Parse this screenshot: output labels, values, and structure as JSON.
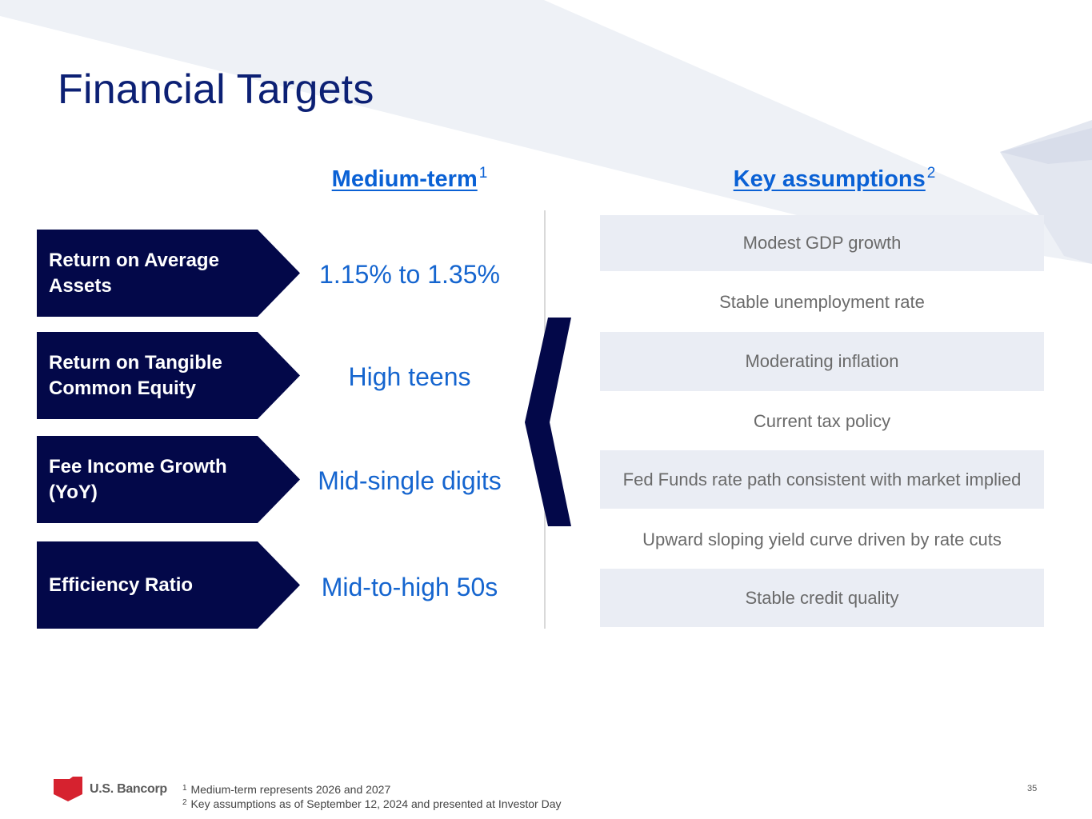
{
  "title": "Financial Targets",
  "headers": {
    "medium_term": "Medium-term",
    "medium_term_note": "1",
    "key_assumptions": "Key assumptions",
    "key_assumptions_note": "2"
  },
  "metrics": [
    {
      "label": "Return on Average Assets",
      "target": "1.15% to 1.35%"
    },
    {
      "label": "Return on Tangible Common Equity",
      "target": "High teens"
    },
    {
      "label": "Fee Income Growth (YoY)",
      "target": "Mid-single digits"
    },
    {
      "label": "Efficiency Ratio",
      "target": "Mid-to-high 50s"
    }
  ],
  "assumptions": [
    "Modest GDP growth",
    "Stable unemployment rate",
    "Moderating inflation",
    "Current tax policy",
    "Fed Funds rate path consistent with market implied",
    "Upward sloping yield curve driven by rate cuts",
    "Stable credit quality"
  ],
  "footnotes": [
    {
      "mark": "1",
      "text": "Medium-term represents 2026 and 2027"
    },
    {
      "mark": "2",
      "text": "Key assumptions as of September 12, 2024 and presented at Investor Day"
    }
  ],
  "logo_text": "U.S. Bancorp",
  "page_number": "35",
  "colors": {
    "navy": "#030849",
    "title_blue": "#0c2074",
    "accent_blue": "#0a61d5",
    "target_blue": "#1565cf",
    "shaded_row": "#eaedf4",
    "logo_red": "#d6222f"
  },
  "icons": {
    "logo": "red-shield-icon",
    "brace": "left-chevron-brace-icon"
  }
}
